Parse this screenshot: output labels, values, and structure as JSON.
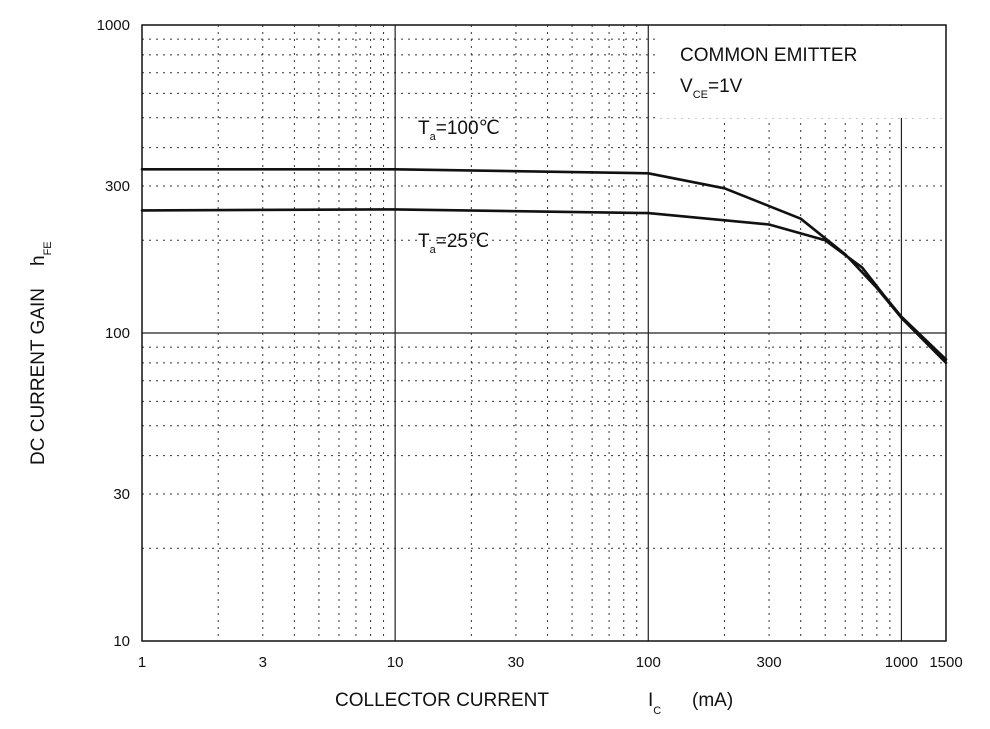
{
  "chart_data": {
    "type": "line",
    "xscale": "log",
    "yscale": "log",
    "xlim": [
      1,
      1500
    ],
    "ylim": [
      10,
      1000
    ],
    "xticks": [
      1,
      3,
      10,
      30,
      100,
      300,
      1000,
      1500
    ],
    "xtick_labels": [
      "1",
      "3",
      "10",
      "30",
      "100",
      "300",
      "1000",
      "1500"
    ],
    "yticks": [
      10,
      30,
      100,
      300,
      1000
    ],
    "ytick_labels": [
      "10",
      "30",
      "100",
      "300",
      "1000"
    ],
    "xlabel": {
      "main": "COLLECTOR CURRENT",
      "symbol": "I",
      "subscript": "C",
      "unit": "(mA)"
    },
    "ylabel": {
      "main": "DC CURRENT GAIN",
      "symbol": "h",
      "subscript": "FE"
    },
    "grid": true,
    "series": [
      {
        "name": "Ta=100℃",
        "label": {
          "symbol": "T",
          "subscript": "a",
          "value": "=100℃"
        },
        "x": [
          1,
          10,
          100,
          200,
          400,
          600,
          800,
          1000,
          1500
        ],
        "y": [
          340,
          340,
          330,
          295,
          235,
          180,
          140,
          112,
          80
        ]
      },
      {
        "name": "Ta=25℃",
        "label": {
          "symbol": "T",
          "subscript": "a",
          "value": "=25℃"
        },
        "x": [
          1,
          10,
          100,
          300,
          500,
          700,
          850,
          1000,
          1500
        ],
        "y": [
          250,
          252,
          245,
          225,
          200,
          163,
          133,
          113,
          82
        ]
      }
    ],
    "annotation": {
      "line1": "COMMON EMITTER",
      "symbol": "V",
      "subscript": "CE",
      "value": "=1V"
    }
  }
}
